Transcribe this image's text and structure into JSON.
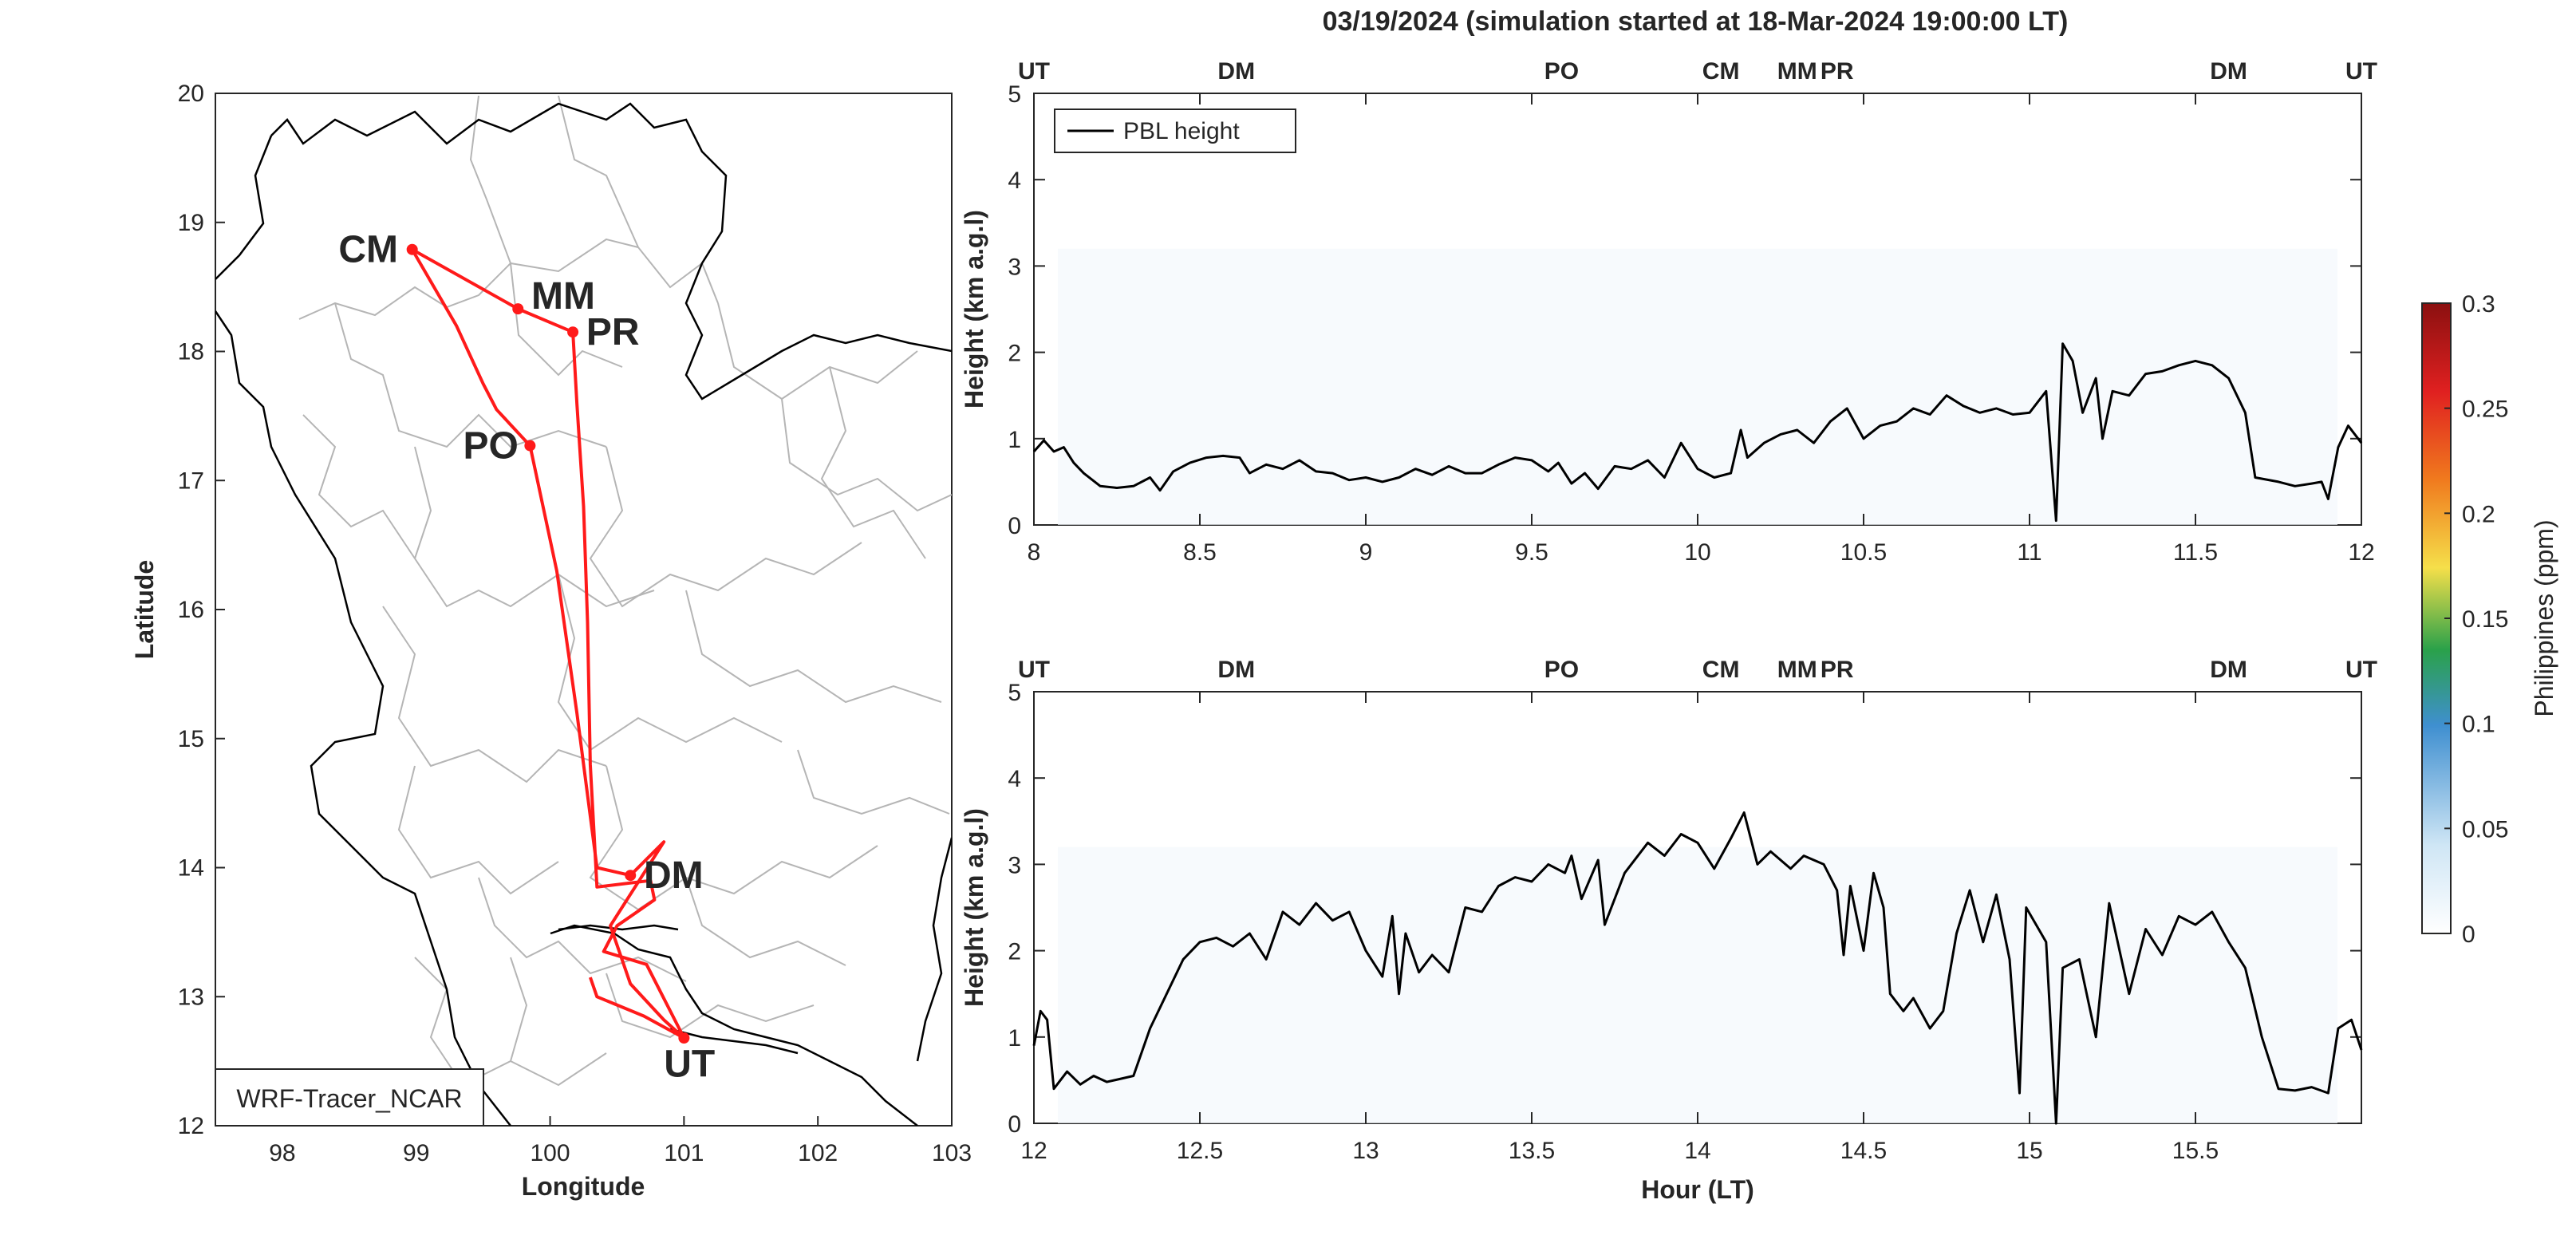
{
  "title": "03/19/2024 (simulation started at 18-Mar-2024 19:00:00 LT)",
  "map": {
    "xlabel": "Longitude",
    "ylabel": "Latitude",
    "xticks": [
      98,
      99,
      100,
      101,
      102,
      103
    ],
    "yticks": [
      12,
      13,
      14,
      15,
      16,
      17,
      18,
      19,
      20
    ],
    "xlim": [
      97.5,
      103
    ],
    "ylim": [
      12,
      20
    ],
    "label_box": "WRF-Tracer_NCAR",
    "track_color": "#ff1a1a",
    "sites": [
      {
        "code": "CM",
        "lon": 98.97,
        "lat": 18.79,
        "color": "#d95319",
        "label_dx": -0.55,
        "label_dy": 0.0
      },
      {
        "code": "MM",
        "lon": 99.76,
        "lat": 18.33,
        "color": "#edb120",
        "label_dx": 0.1,
        "label_dy": 0.1
      },
      {
        "code": "PR",
        "lon": 100.17,
        "lat": 18.15,
        "color": "#7e2f8e",
        "label_dx": 0.1,
        "label_dy": 0.0
      },
      {
        "code": "PO",
        "lon": 99.85,
        "lat": 17.27,
        "color": "#77ac30",
        "label_dx": -0.5,
        "label_dy": 0.0
      },
      {
        "code": "DM",
        "lon": 100.6,
        "lat": 13.94,
        "color": "#4dbeee",
        "label_dx": 0.1,
        "label_dy": 0.0
      },
      {
        "code": "UT",
        "lon": 101.0,
        "lat": 12.68,
        "color": "#000000",
        "label_dx": -0.15,
        "label_dy": -0.2
      }
    ],
    "track": [
      [
        101.0,
        12.68
      ],
      [
        100.85,
        12.82
      ],
      [
        100.6,
        13.1
      ],
      [
        100.45,
        13.55
      ],
      [
        100.85,
        14.2
      ],
      [
        100.6,
        13.94
      ],
      [
        100.35,
        14.0
      ],
      [
        100.2,
        15.2
      ],
      [
        100.05,
        16.3
      ],
      [
        99.85,
        17.27
      ],
      [
        99.6,
        17.55
      ],
      [
        99.5,
        17.75
      ],
      [
        99.3,
        18.2
      ],
      [
        98.97,
        18.79
      ],
      [
        99.76,
        18.33
      ],
      [
        100.17,
        18.15
      ],
      [
        100.2,
        17.6
      ],
      [
        100.25,
        16.8
      ],
      [
        100.28,
        15.9
      ],
      [
        100.3,
        14.8
      ],
      [
        100.35,
        13.85
      ],
      [
        100.75,
        13.9
      ],
      [
        100.78,
        13.75
      ],
      [
        100.5,
        13.55
      ],
      [
        100.4,
        13.35
      ],
      [
        100.72,
        13.25
      ],
      [
        101.0,
        12.68
      ],
      [
        100.7,
        12.85
      ],
      [
        100.35,
        13.0
      ],
      [
        100.3,
        13.15
      ]
    ]
  },
  "panels": [
    {
      "ylabel": "Height (km a.g.l)",
      "xlim": [
        8,
        12
      ],
      "ylim": [
        0,
        5
      ],
      "xticks": [
        "8",
        "8.5",
        "9",
        "9.5",
        "10",
        "10.5",
        "11",
        "11.5",
        "12"
      ],
      "yticks": [
        "0",
        "1",
        "2",
        "3",
        "4",
        "5"
      ],
      "legend": "PBL height",
      "top_markers": [
        {
          "code": "UT",
          "x": 8.0,
          "color": "#000000"
        },
        {
          "code": "DM",
          "x": 8.61,
          "color": "#4dbeee"
        },
        {
          "code": "PO",
          "x": 9.59,
          "color": "#77ac30"
        },
        {
          "code": "CM",
          "x": 10.07,
          "color": "#d95319"
        },
        {
          "code": "MM",
          "x": 10.3,
          "color": "#edb120"
        },
        {
          "code": "PR",
          "x": 10.42,
          "color": "#7e2f8e"
        },
        {
          "code": "DM",
          "x": 11.6,
          "color": "#4dbeee"
        },
        {
          "code": "UT",
          "x": 12.0,
          "color": "#000000"
        }
      ],
      "series": [
        {
          "values": [
            [
              8.0,
              0.85
            ],
            [
              8.03,
              0.98
            ],
            [
              8.06,
              0.85
            ],
            [
              8.09,
              0.9
            ],
            [
              8.12,
              0.72
            ],
            [
              8.15,
              0.6
            ],
            [
              8.2,
              0.45
            ],
            [
              8.25,
              0.43
            ],
            [
              8.3,
              0.45
            ],
            [
              8.35,
              0.55
            ],
            [
              8.38,
              0.4
            ],
            [
              8.42,
              0.62
            ],
            [
              8.47,
              0.72
            ],
            [
              8.52,
              0.78
            ],
            [
              8.57,
              0.8
            ],
            [
              8.62,
              0.78
            ],
            [
              8.65,
              0.6
            ],
            [
              8.7,
              0.7
            ],
            [
              8.75,
              0.65
            ],
            [
              8.8,
              0.75
            ],
            [
              8.85,
              0.62
            ],
            [
              8.9,
              0.6
            ],
            [
              8.95,
              0.52
            ],
            [
              9.0,
              0.55
            ],
            [
              9.05,
              0.5
            ],
            [
              9.1,
              0.55
            ],
            [
              9.15,
              0.65
            ],
            [
              9.2,
              0.58
            ],
            [
              9.25,
              0.68
            ],
            [
              9.3,
              0.6
            ],
            [
              9.35,
              0.6
            ],
            [
              9.4,
              0.7
            ],
            [
              9.45,
              0.78
            ],
            [
              9.5,
              0.75
            ],
            [
              9.55,
              0.62
            ],
            [
              9.58,
              0.72
            ],
            [
              9.62,
              0.48
            ],
            [
              9.66,
              0.6
            ],
            [
              9.7,
              0.42
            ],
            [
              9.75,
              0.68
            ],
            [
              9.8,
              0.65
            ],
            [
              9.85,
              0.75
            ],
            [
              9.9,
              0.55
            ],
            [
              9.95,
              0.95
            ],
            [
              10.0,
              0.65
            ],
            [
              10.05,
              0.55
            ],
            [
              10.1,
              0.6
            ],
            [
              10.13,
              1.1
            ],
            [
              10.15,
              0.78
            ],
            [
              10.2,
              0.95
            ],
            [
              10.25,
              1.05
            ],
            [
              10.3,
              1.1
            ],
            [
              10.35,
              0.95
            ],
            [
              10.4,
              1.2
            ],
            [
              10.45,
              1.35
            ],
            [
              10.5,
              1.0
            ],
            [
              10.55,
              1.15
            ],
            [
              10.6,
              1.2
            ],
            [
              10.65,
              1.35
            ],
            [
              10.7,
              1.28
            ],
            [
              10.75,
              1.5
            ],
            [
              10.8,
              1.38
            ],
            [
              10.85,
              1.3
            ],
            [
              10.9,
              1.35
            ],
            [
              10.95,
              1.28
            ],
            [
              11.0,
              1.3
            ],
            [
              11.05,
              1.55
            ],
            [
              11.08,
              0.05
            ],
            [
              11.1,
              2.1
            ],
            [
              11.13,
              1.9
            ],
            [
              11.16,
              1.3
            ],
            [
              11.2,
              1.7
            ],
            [
              11.22,
              1.0
            ],
            [
              11.25,
              1.55
            ],
            [
              11.3,
              1.5
            ],
            [
              11.35,
              1.75
            ],
            [
              11.4,
              1.78
            ],
            [
              11.45,
              1.85
            ],
            [
              11.5,
              1.9
            ],
            [
              11.55,
              1.85
            ],
            [
              11.6,
              1.7
            ],
            [
              11.65,
              1.3
            ],
            [
              11.68,
              0.55
            ],
            [
              11.75,
              0.5
            ],
            [
              11.8,
              0.45
            ],
            [
              11.85,
              0.48
            ],
            [
              11.88,
              0.5
            ],
            [
              11.9,
              0.3
            ],
            [
              11.93,
              0.9
            ],
            [
              11.96,
              1.15
            ],
            [
              12.0,
              0.95
            ]
          ]
        }
      ]
    },
    {
      "ylabel": "Height (km a.g.l)",
      "xlabel": "Hour (LT)",
      "xlim": [
        12,
        16
      ],
      "ylim": [
        0,
        5
      ],
      "xticks": [
        "12",
        "12.5",
        "13",
        "13.5",
        "14",
        "14.5",
        "15",
        "15.5"
      ],
      "yticks": [
        "0",
        "1",
        "2",
        "3",
        "4",
        "5"
      ],
      "top_markers": [
        {
          "code": "UT",
          "x": 12.0,
          "color": "#000000"
        },
        {
          "code": "DM",
          "x": 12.61,
          "color": "#4dbeee"
        },
        {
          "code": "PO",
          "x": 13.59,
          "color": "#77ac30"
        },
        {
          "code": "CM",
          "x": 14.07,
          "color": "#d95319"
        },
        {
          "code": "MM",
          "x": 14.3,
          "color": "#edb120"
        },
        {
          "code": "PR",
          "x": 14.42,
          "color": "#7e2f8e"
        },
        {
          "code": "DM",
          "x": 15.6,
          "color": "#4dbeee"
        },
        {
          "code": "UT",
          "x": 16.0,
          "color": "#000000"
        }
      ],
      "series": [
        {
          "values": [
            [
              12.0,
              0.9
            ],
            [
              12.02,
              1.3
            ],
            [
              12.04,
              1.2
            ],
            [
              12.06,
              0.4
            ],
            [
              12.1,
              0.6
            ],
            [
              12.14,
              0.45
            ],
            [
              12.18,
              0.55
            ],
            [
              12.22,
              0.48
            ],
            [
              12.3,
              0.55
            ],
            [
              12.35,
              1.1
            ],
            [
              12.4,
              1.5
            ],
            [
              12.45,
              1.9
            ],
            [
              12.5,
              2.1
            ],
            [
              12.55,
              2.15
            ],
            [
              12.6,
              2.05
            ],
            [
              12.65,
              2.2
            ],
            [
              12.7,
              1.9
            ],
            [
              12.75,
              2.45
            ],
            [
              12.8,
              2.3
            ],
            [
              12.85,
              2.55
            ],
            [
              12.9,
              2.35
            ],
            [
              12.95,
              2.45
            ],
            [
              13.0,
              2.0
            ],
            [
              13.05,
              1.7
            ],
            [
              13.08,
              2.4
            ],
            [
              13.1,
              1.5
            ],
            [
              13.12,
              2.2
            ],
            [
              13.16,
              1.75
            ],
            [
              13.2,
              1.95
            ],
            [
              13.25,
              1.75
            ],
            [
              13.3,
              2.5
            ],
            [
              13.35,
              2.45
            ],
            [
              13.4,
              2.75
            ],
            [
              13.45,
              2.85
            ],
            [
              13.5,
              2.8
            ],
            [
              13.55,
              3.0
            ],
            [
              13.6,
              2.9
            ],
            [
              13.62,
              3.1
            ],
            [
              13.65,
              2.6
            ],
            [
              13.7,
              3.05
            ],
            [
              13.72,
              2.3
            ],
            [
              13.78,
              2.9
            ],
            [
              13.85,
              3.25
            ],
            [
              13.9,
              3.1
            ],
            [
              13.95,
              3.35
            ],
            [
              14.0,
              3.25
            ],
            [
              14.05,
              2.95
            ],
            [
              14.1,
              3.3
            ],
            [
              14.14,
              3.6
            ],
            [
              14.18,
              3.0
            ],
            [
              14.22,
              3.15
            ],
            [
              14.28,
              2.95
            ],
            [
              14.32,
              3.1
            ],
            [
              14.38,
              3.0
            ],
            [
              14.42,
              2.7
            ],
            [
              14.44,
              1.95
            ],
            [
              14.46,
              2.75
            ],
            [
              14.5,
              2.0
            ],
            [
              14.53,
              2.9
            ],
            [
              14.56,
              2.5
            ],
            [
              14.58,
              1.5
            ],
            [
              14.62,
              1.3
            ],
            [
              14.65,
              1.45
            ],
            [
              14.7,
              1.1
            ],
            [
              14.74,
              1.3
            ],
            [
              14.78,
              2.2
            ],
            [
              14.82,
              2.7
            ],
            [
              14.86,
              2.1
            ],
            [
              14.9,
              2.65
            ],
            [
              14.94,
              1.9
            ],
            [
              14.97,
              0.35
            ],
            [
              14.99,
              2.5
            ],
            [
              15.02,
              2.3
            ],
            [
              15.05,
              2.1
            ],
            [
              15.08,
              0.0
            ],
            [
              15.1,
              1.8
            ],
            [
              15.15,
              1.9
            ],
            [
              15.2,
              1.0
            ],
            [
              15.24,
              2.55
            ],
            [
              15.3,
              1.5
            ],
            [
              15.35,
              2.25
            ],
            [
              15.4,
              1.95
            ],
            [
              15.45,
              2.4
            ],
            [
              15.5,
              2.3
            ],
            [
              15.55,
              2.45
            ],
            [
              15.6,
              2.1
            ],
            [
              15.65,
              1.8
            ],
            [
              15.7,
              1.0
            ],
            [
              15.75,
              0.4
            ],
            [
              15.8,
              0.38
            ],
            [
              15.85,
              0.42
            ],
            [
              15.9,
              0.35
            ],
            [
              15.93,
              1.1
            ],
            [
              15.97,
              1.2
            ],
            [
              16.0,
              0.85
            ]
          ]
        }
      ]
    }
  ],
  "colorbar": {
    "label": "Philippines (ppm)",
    "ticks": [
      "0",
      "0.05",
      "0.1",
      "0.15",
      "0.2",
      "0.25",
      "0.3"
    ],
    "range": [
      0,
      0.3
    ],
    "stops": [
      "#ffffff",
      "#cfe6f5",
      "#3f8fd0",
      "#2aa14a",
      "#f5df4a",
      "#f07a1e",
      "#e02020",
      "#8b1010"
    ]
  },
  "chart_data": [
    {
      "type": "line",
      "title": "03/19/2024 (simulation started at 18-Mar-2024 19:00:00 LT)",
      "xlabel": "",
      "ylabel": "Height (km a.g.l)",
      "xlim": [
        8,
        12
      ],
      "ylim": [
        0,
        5
      ],
      "series": [
        {
          "name": "PBL height",
          "ref": "panels.0.series.0.values"
        }
      ]
    },
    {
      "type": "line",
      "xlabel": "Hour (LT)",
      "ylabel": "Height (km a.g.l)",
      "xlim": [
        12,
        16
      ],
      "ylim": [
        0,
        5
      ],
      "series": [
        {
          "ref": "panels.1.series.0.values"
        }
      ]
    },
    {
      "type": "scatter",
      "xlabel": "Longitude",
      "ylabel": "Latitude",
      "xlim": [
        97.5,
        103
      ],
      "ylim": [
        12,
        20
      ]
    }
  ]
}
